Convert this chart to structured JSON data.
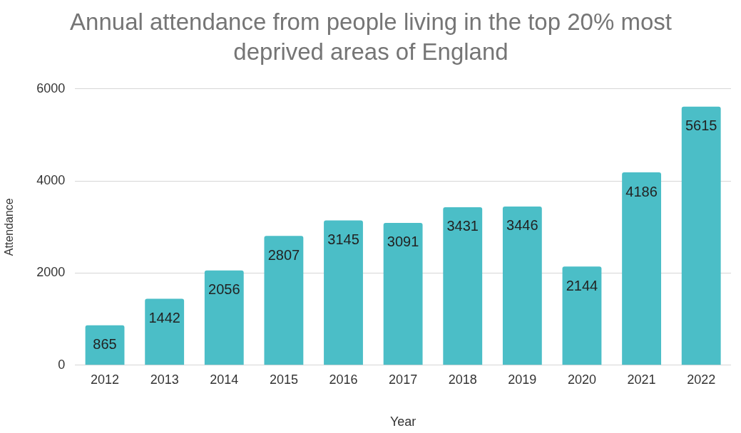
{
  "chart_data": {
    "type": "bar",
    "title": "Annual attendance from people living in the top 20% most deprived areas of England",
    "xlabel": "Year",
    "ylabel": "Attendance",
    "categories": [
      "2012",
      "2013",
      "2014",
      "2015",
      "2016",
      "2017",
      "2018",
      "2019",
      "2020",
      "2021",
      "2022"
    ],
    "values": [
      865,
      1442,
      2056,
      2807,
      3145,
      3091,
      3431,
      3446,
      2144,
      4186,
      5615
    ],
    "color": "#4bbec7",
    "ylim": [
      0,
      6000
    ],
    "yticks": [
      0,
      2000,
      4000,
      6000
    ],
    "grid": "y",
    "legend": false,
    "data_labels": true
  }
}
